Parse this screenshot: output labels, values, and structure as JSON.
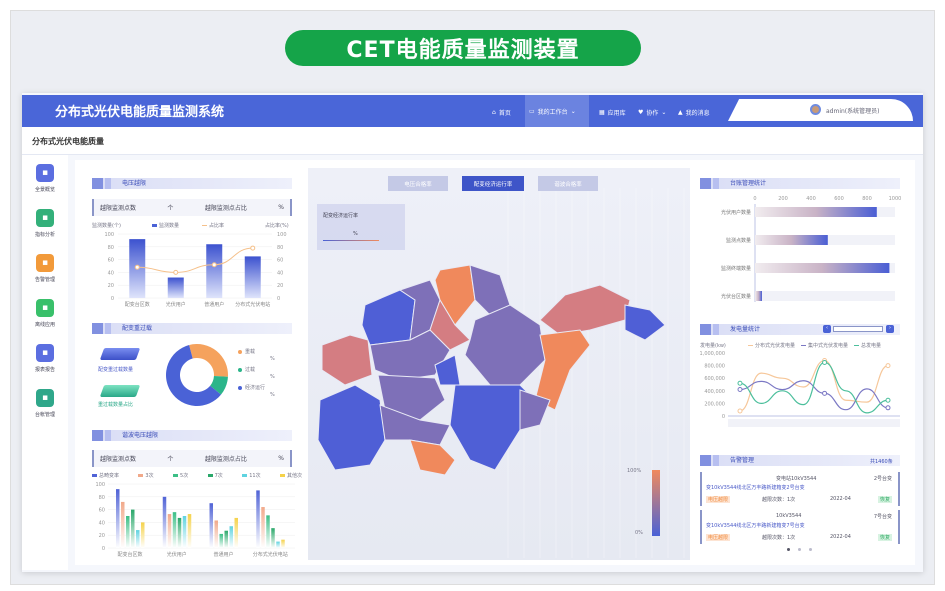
{
  "banner": "CET电能质量监测装置",
  "header": {
    "title": "分布式光伏电能质量监测系统",
    "nav": [
      {
        "icon": "home-icon",
        "label": "首页"
      },
      {
        "icon": "monitor-icon",
        "label": "我的工作台"
      },
      {
        "icon": "grid-icon",
        "label": "应用库"
      },
      {
        "icon": "heart-icon",
        "label": "协作"
      },
      {
        "icon": "bell-icon",
        "label": "我的消息"
      }
    ],
    "user": "admin(系统管理员)"
  },
  "breadcrumb": "分布式光伏电能质量",
  "sidebar": {
    "items": [
      {
        "label": "全景概览",
        "color": "#5b6ee0"
      },
      {
        "label": "指标分析",
        "color": "#33b07a"
      },
      {
        "label": "告警管理",
        "color": "#f29a3a"
      },
      {
        "label": "离线应用",
        "color": "#39c06a"
      },
      {
        "label": "报表报告",
        "color": "#5b6ee0"
      },
      {
        "label": "台帐管理",
        "color": "#2fa78a"
      }
    ]
  },
  "voltage": {
    "title": "电压越限",
    "stat_label1": "越限监测点数",
    "stat_unit1": "个",
    "stat_label2": "越限监测点占比",
    "stat_unit2": "%",
    "yleft": "监测数量(个)",
    "yright": "占比率(%)"
  },
  "overload": {
    "title": "配变重过载",
    "icon1_label": "配变重过载数量",
    "icon2_label": "重过载数量占比",
    "legend": [
      {
        "name": "重载",
        "value": "%"
      },
      {
        "name": "过载",
        "value": "%"
      },
      {
        "name": "经济运行",
        "value": "%"
      }
    ]
  },
  "harmonic": {
    "title": "谐波电压越限",
    "stat_label1": "越限监测点数",
    "stat_unit1": "个",
    "stat_label2": "越限监测点占比",
    "stat_unit2": "%"
  },
  "map": {
    "tabs": [
      "电压合格率",
      "配变经济运行率",
      "谐波合格率"
    ],
    "active_tab": 1,
    "box_title": "配变经济运行率",
    "box_value": "%",
    "scale_max": "100%",
    "scale_min": "0%"
  },
  "ledger": {
    "title": "台账管理统计"
  },
  "generation": {
    "title": "发电量统计",
    "ylabel": "发电量(kw)"
  },
  "alarms": {
    "title": "告警管理",
    "count": "共1460条",
    "items": [
      {
        "station": "变电站10kV3544",
        "transformer": "2号台变",
        "desc": "变10kV3544线北区万丰路新建箱变2号台变",
        "tag": "电压越限",
        "times": "越限次数：1次",
        "date": "2022-04",
        "status": "恢复"
      },
      {
        "station": "10kV3544",
        "transformer": "7号台变",
        "desc": "变10kV3544线北区万丰路新建箱变7号台变",
        "tag": "电压越限",
        "times": "越限次数：1次",
        "date": "2022-04",
        "status": "恢复"
      }
    ]
  },
  "chart_data": [
    {
      "type": "bar",
      "id": "voltage",
      "categories": [
        "配变台区数",
        "光伏用户",
        "普通用户",
        "分布式光伏电站"
      ],
      "series": [
        {
          "name": "监测数量",
          "values": [
            92,
            32,
            84,
            65
          ]
        },
        {
          "name": "占比率",
          "type": "line",
          "values": [
            48,
            40,
            52,
            78
          ]
        }
      ],
      "ylim": [
        0,
        100
      ],
      "y2lim": [
        0,
        100
      ],
      "yticks": [
        0,
        20,
        40,
        60,
        80,
        100
      ]
    },
    {
      "type": "pie",
      "id": "overload",
      "categories": [
        "重载",
        "过载",
        "经济运行"
      ],
      "values": [
        30,
        10,
        60
      ],
      "colors": [
        "#f5a25d",
        "#2bb58a",
        "#4a62d6"
      ]
    },
    {
      "type": "bar",
      "id": "harmonic",
      "categories": [
        "配变台区数",
        "光伏用户",
        "普通用户",
        "分布式光伏电站"
      ],
      "series": [
        {
          "name": "总畸变率",
          "values": [
            92,
            80,
            70,
            90
          ]
        },
        {
          "name": "3次",
          "values": [
            72,
            53,
            43,
            64
          ]
        },
        {
          "name": "5次",
          "values": [
            50,
            56,
            22,
            51
          ]
        },
        {
          "name": "7次",
          "values": [
            60,
            47,
            27,
            31
          ]
        },
        {
          "name": "11次",
          "values": [
            28,
            50,
            34,
            10
          ]
        },
        {
          "name": "其他次",
          "values": [
            40,
            53,
            47,
            13
          ]
        }
      ],
      "colors": [
        "#5063d6",
        "#f1a98a",
        "#3bbf86",
        "#2aa86a",
        "#5fd3e0",
        "#f5d24a"
      ],
      "ylim": [
        0,
        100
      ],
      "yticks": [
        0,
        20,
        40,
        60,
        80,
        100
      ]
    },
    {
      "type": "bar",
      "id": "ledger",
      "orientation": "horizontal",
      "categories": [
        "光伏用户数量",
        "监测点数量",
        "监测终端数量",
        "光伏台区数量"
      ],
      "values": [
        870,
        520,
        960,
        50
      ],
      "xlim": [
        0,
        1000
      ],
      "xticks": [
        0,
        200,
        400,
        600,
        800,
        1000
      ]
    },
    {
      "type": "line",
      "id": "generation",
      "series": [
        {
          "name": "分布式光伏发电量",
          "color": "#f6c79a",
          "values": [
            80000,
            680000,
            600000,
            460000,
            880000,
            250000,
            220000,
            800000
          ]
        },
        {
          "name": "集中式光伏发电量",
          "color": "#7b78c4",
          "values": [
            420000,
            550000,
            420000,
            560000,
            360000,
            100000,
            430000,
            130000
          ]
        },
        {
          "name": "总发电量",
          "color": "#4cbf9c",
          "values": [
            520000,
            200000,
            400000,
            180000,
            850000,
            400000,
            50000,
            250000
          ]
        }
      ],
      "ylim": [
        0,
        1000000
      ],
      "yticks": [
        "0",
        "200,000",
        "400,000",
        "600,000",
        "800,000",
        "1,000,000"
      ]
    }
  ]
}
